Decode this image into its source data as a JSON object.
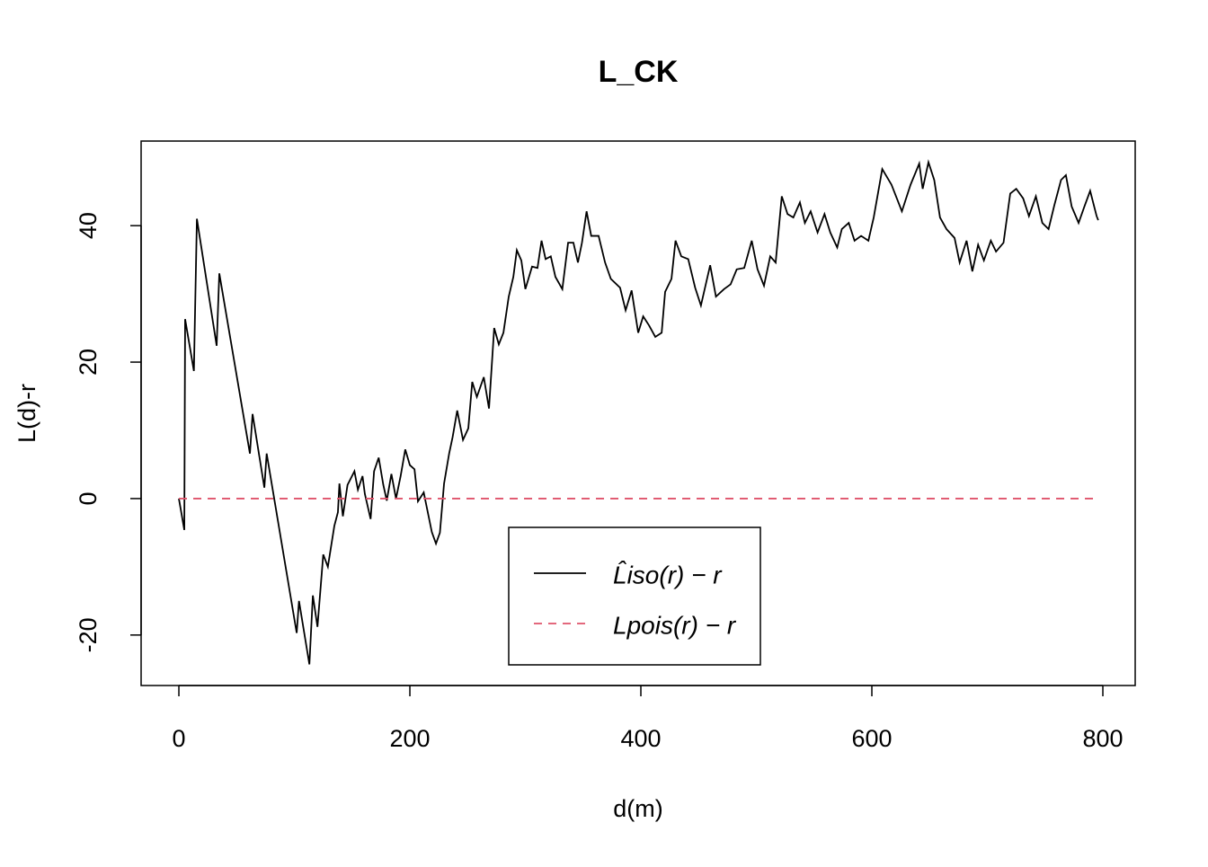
{
  "chart_data": {
    "type": "line",
    "title": "L_CK",
    "xlabel": "d(m)",
    "ylabel": "L(d)-r",
    "xlim": [
      -32.7,
      828
    ],
    "ylim": [
      -27.4,
      52.4
    ],
    "xticks": [
      0,
      200,
      400,
      600,
      800
    ],
    "yticks": [
      -20,
      0,
      20,
      40
    ],
    "legend": "bottom-center",
    "series": [
      {
        "name": "L̂iso(r) − r",
        "color": "#000000",
        "dash": false,
        "x": [
          0,
          4.7,
          5.4,
          13,
          15.6,
          32.7,
          35,
          61.5,
          63.8,
          74,
          76,
          102,
          104,
          113,
          116,
          120,
          125,
          129,
          134.6,
          137.7,
          139,
          142,
          146,
          152,
          155,
          159,
          161,
          166,
          169,
          173,
          177,
          180,
          184,
          188,
          192,
          196,
          200,
          204,
          207,
          212,
          219,
          222.6,
          226,
          229.6,
          234,
          237,
          241,
          246,
          250.6,
          254,
          258,
          264,
          268.5,
          273,
          277,
          281,
          285.6,
          289.6,
          292.6,
          296.5,
          300,
          305.8,
          310.5,
          314,
          317.5,
          322,
          326,
          332,
          337,
          341.6,
          345.5,
          349,
          353,
          357,
          363.4,
          369,
          374,
          382,
          386.8,
          392,
          397.7,
          402,
          407,
          412.5,
          418,
          421,
          426.5,
          430,
          435,
          441,
          447,
          452,
          460,
          465,
          472,
          477.7,
          483,
          489.5,
          496,
          501,
          506.6,
          512,
          516.7,
          522,
          527,
          532,
          537.7,
          542,
          547,
          553,
          559,
          564,
          570,
          574,
          580,
          585,
          590.7,
          597,
          601.6,
          609,
          617,
          626,
          633.5,
          641,
          644,
          649,
          654,
          659,
          664.6,
          671.6,
          676,
          682,
          687,
          692,
          697,
          703,
          707.5,
          714,
          719.8,
          725,
          731,
          736,
          742,
          747.6,
          753,
          758,
          763.8,
          768,
          773,
          779,
          784,
          789,
          794.6,
          796
        ],
        "values": [
          0,
          -4.6,
          26.3,
          18.7,
          41,
          22.4,
          33,
          6.6,
          12.4,
          1.6,
          6.6,
          -19.7,
          -15,
          -24.3,
          -14.2,
          -18.8,
          -8.2,
          -10,
          -4,
          -2,
          2.2,
          -2.6,
          2,
          4,
          1.3,
          3.3,
          0.7,
          -3,
          4,
          6,
          2,
          -0.3,
          3.6,
          0,
          3.3,
          7.2,
          4.9,
          4.3,
          -0.4,
          0.9,
          -4.9,
          -6.6,
          -5,
          2.2,
          6.6,
          9,
          12.9,
          8.6,
          10.3,
          17.1,
          14.9,
          17.8,
          13.2,
          25,
          22.6,
          24.3,
          29.6,
          32.5,
          36.4,
          34.9,
          30.7,
          34,
          33.8,
          37.8,
          35.1,
          35.5,
          32.5,
          30.7,
          37.5,
          37.5,
          34.6,
          37.5,
          42.1,
          38.5,
          38.5,
          34.6,
          32.2,
          30.9,
          27.6,
          30.5,
          24.3,
          26.7,
          25.4,
          23.7,
          24.3,
          30.3,
          32.2,
          37.8,
          35.5,
          35.1,
          30.9,
          28.3,
          34.2,
          29.6,
          30.7,
          31.4,
          33.6,
          33.8,
          37.8,
          33.6,
          31.2,
          35.5,
          34.6,
          44.3,
          41.7,
          41.2,
          43.4,
          40.4,
          42.1,
          39,
          41.7,
          39,
          36.8,
          39.5,
          40.4,
          37.8,
          38.5,
          37.8,
          41.2,
          48.3,
          46,
          42.1,
          46,
          49.1,
          45.4,
          49.3,
          46.7,
          41.2,
          39.5,
          38.2,
          34.6,
          37.8,
          33.3,
          37.2,
          34.9,
          37.8,
          36.2,
          37.5,
          44.7,
          45.4,
          44,
          41.4,
          44.3,
          40.4,
          39.5,
          43,
          46.7,
          47.4,
          42.8,
          40.4,
          42.8,
          45.1,
          41.4,
          40.8
        ]
      },
      {
        "name": "Lpois(r) − r",
        "color": "#DF536B",
        "dash": true,
        "x": [
          0,
          796
        ],
        "values": [
          0,
          0
        ]
      }
    ]
  }
}
